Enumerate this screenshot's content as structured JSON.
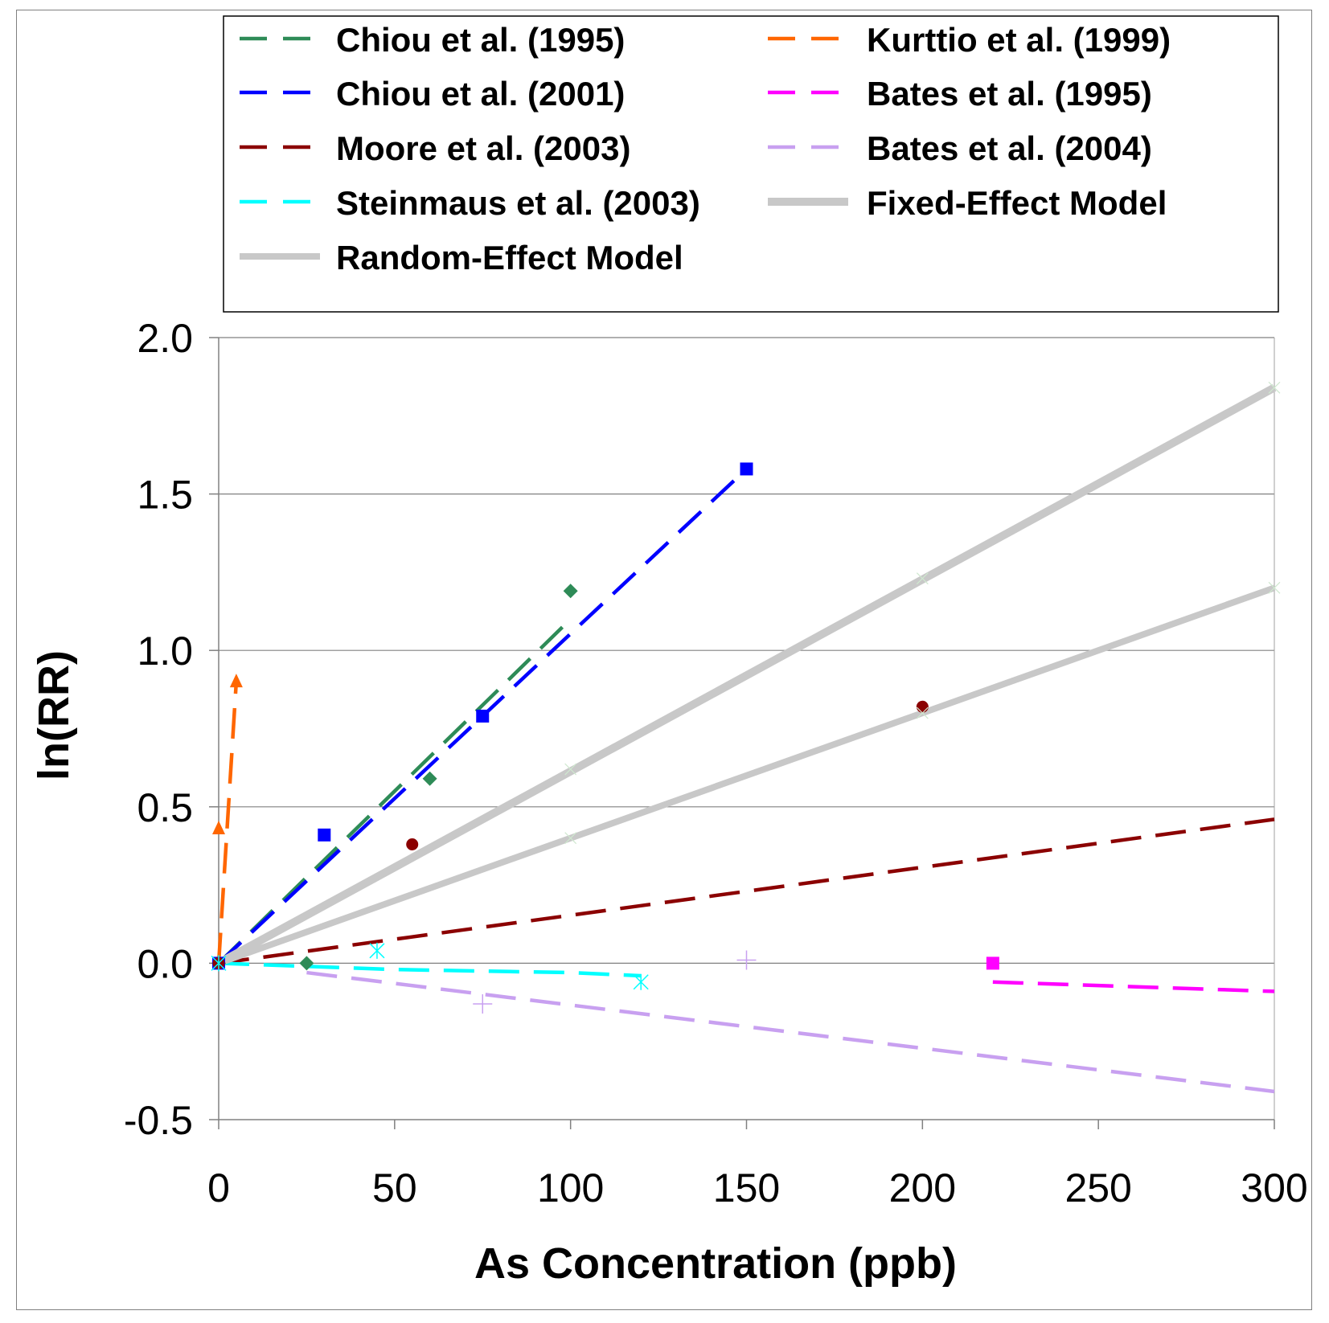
{
  "chart_data": {
    "type": "line",
    "title": "",
    "xlabel": "As Concentration (ppb)",
    "ylabel": "ln(RR)",
    "xlim": [
      0,
      300
    ],
    "ylim": [
      -0.5,
      2.0
    ],
    "x_ticks": [
      "0",
      "50",
      "100",
      "150",
      "200",
      "250",
      "300"
    ],
    "y_ticks": [
      "-0.5",
      "0.0",
      "0.5",
      "1.0",
      "1.5",
      "2.0"
    ],
    "y_tick_colors": [
      "#FF0000",
      "#000000",
      "#000000",
      "#000000",
      "#000000",
      "#000000"
    ],
    "grid": "horizontal",
    "legend_position": "top",
    "series": [
      {
        "name": "Chiou et al. (1995)",
        "color": "#2E8B57",
        "style": "dashed",
        "marker": "diamond",
        "line": [
          [
            0,
            0
          ],
          [
            100,
            1.1
          ]
        ],
        "points": [
          [
            0,
            0
          ],
          [
            25,
            0.0
          ],
          [
            60,
            0.59
          ],
          [
            100,
            1.19
          ]
        ]
      },
      {
        "name": "Kurttio et al. (1999)",
        "color": "#FF6600",
        "style": "dashed",
        "marker": "triangle",
        "line": [
          [
            0,
            0
          ],
          [
            5,
            0.9
          ]
        ],
        "points": [
          [
            0,
            0.0
          ],
          [
            0,
            0.43
          ],
          [
            5,
            0.9
          ]
        ]
      },
      {
        "name": "Chiou et al. (2001)",
        "color": "#0000FF",
        "style": "dashed",
        "marker": "square",
        "line": [
          [
            0,
            0
          ],
          [
            150,
            1.58
          ]
        ],
        "points": [
          [
            0,
            0
          ],
          [
            30,
            0.41
          ],
          [
            75,
            0.79
          ],
          [
            150,
            1.58
          ]
        ]
      },
      {
        "name": "Bates et al. (1995)",
        "color": "#FF00FF",
        "style": "dashed",
        "marker": "square",
        "line": [
          [
            220,
            -0.06
          ],
          [
            300,
            -0.09
          ]
        ],
        "points": [
          [
            220,
            0.0
          ]
        ]
      },
      {
        "name": "Moore et al. (2003)",
        "color": "#8B0000",
        "style": "dashed",
        "marker": "circle",
        "line": [
          [
            0,
            0
          ],
          [
            300,
            0.46
          ]
        ],
        "points": [
          [
            0,
            0
          ],
          [
            55,
            0.38
          ],
          [
            200,
            0.82
          ]
        ]
      },
      {
        "name": "Bates et al. (2004)",
        "color": "#C8A0F0",
        "style": "dashed",
        "marker": "plus",
        "line": [
          [
            25,
            -0.03
          ],
          [
            300,
            -0.41
          ]
        ],
        "points": [
          [
            75,
            -0.13
          ],
          [
            150,
            0.01
          ]
        ]
      },
      {
        "name": "Steinmaus et al. (2003)",
        "color": "#00FFFF",
        "style": "dashed",
        "marker": "asterisk",
        "line": [
          [
            0,
            0
          ],
          [
            25,
            -0.01
          ],
          [
            50,
            -0.02
          ],
          [
            100,
            -0.03
          ],
          [
            120,
            -0.04
          ]
        ],
        "points": [
          [
            0,
            0
          ],
          [
            45,
            0.04
          ],
          [
            120,
            -0.06
          ]
        ]
      },
      {
        "name": "Fixed-Effect Model",
        "color": "#C8C8C8",
        "style": "solid-thick",
        "line": [
          [
            0,
            0
          ],
          [
            300,
            1.84
          ]
        ],
        "points": [
          [
            100,
            0.62
          ],
          [
            200,
            1.23
          ],
          [
            300,
            1.84
          ]
        ]
      },
      {
        "name": "Random-Effect Model",
        "color": "#C8C8C8",
        "style": "solid",
        "line": [
          [
            0,
            0
          ],
          [
            300,
            1.2
          ]
        ],
        "points": [
          [
            100,
            0.4
          ],
          [
            200,
            0.8
          ],
          [
            300,
            1.2
          ]
        ]
      }
    ]
  }
}
